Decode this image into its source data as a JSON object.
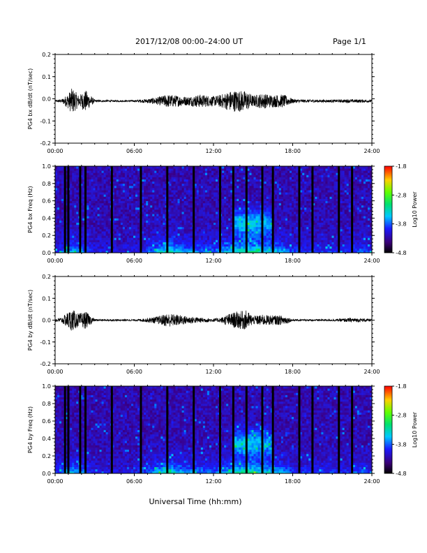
{
  "header": {
    "title": "2017/12/08  00:00–24:00 UT",
    "page": "Page 1/1"
  },
  "chart_data": [
    {
      "type": "line",
      "ylabel": "PG4 bx dB/dt (nT/sec)",
      "xlabel": "",
      "xlim": [
        "00:00",
        "24:00"
      ],
      "ylim": [
        -0.2,
        0.2
      ],
      "x_ticks": [
        "00:00",
        "06:00",
        "12:00",
        "18:00",
        "24:00"
      ],
      "y_ticks": [
        "-0.2",
        "-0.1",
        "0.0",
        "0.1",
        "0.2"
      ],
      "series": [
        {
          "x_hours": [
            0,
            0.5,
            1.0,
            1.3,
            1.8,
            2.3,
            3,
            4,
            5,
            6,
            6.5,
            7,
            7.8,
            8.5,
            9.3,
            10,
            11,
            12,
            12.5,
            13.2,
            13.8,
            14.5,
            15,
            15.7,
            16.5,
            17.3,
            18,
            18.5,
            19.5,
            21,
            22.5,
            24
          ],
          "envelope": [
            0.005,
            0.008,
            0.035,
            0.06,
            0.025,
            0.05,
            0.006,
            0.004,
            0.004,
            0.004,
            0.007,
            0.01,
            0.018,
            0.03,
            0.025,
            0.02,
            0.03,
            0.022,
            0.028,
            0.045,
            0.05,
            0.045,
            0.025,
            0.035,
            0.028,
            0.03,
            0.01,
            0.007,
            0.007,
            0.006,
            0.008,
            0.006
          ],
          "baseline": -0.01
        }
      ]
    },
    {
      "type": "heatmap",
      "ylabel": "PG4 bx Freq (Hz)",
      "xlim": [
        "00:00",
        "24:00"
      ],
      "ylim": [
        0.0,
        1.0
      ],
      "x_ticks": [
        "00:00",
        "06:00",
        "12:00",
        "18:00",
        "24:00"
      ],
      "y_ticks": [
        "0.0",
        "0.2",
        "0.4",
        "0.6",
        "0.8",
        "1.0"
      ],
      "colorbar": {
        "label": "Log10 Power",
        "range": [
          -4.8,
          -1.8
        ],
        "ticks": [
          "-1.8",
          "-2.8",
          "-3.8",
          "-4.8"
        ]
      },
      "gap_hours": [
        0.75,
        1.0,
        1.9,
        2.3,
        4.3,
        6.5,
        8.5,
        10.5,
        12.5,
        13.5,
        14.5,
        15.7,
        16.5,
        18.5,
        19.5,
        21.5,
        22.5
      ]
    },
    {
      "type": "line",
      "ylabel": "PG4 by dB/dt (nT/sec)",
      "xlim": [
        "00:00",
        "24:00"
      ],
      "ylim": [
        -0.2,
        0.2
      ],
      "x_ticks": [
        "00:00",
        "06:00",
        "12:00",
        "18:00",
        "24:00"
      ],
      "y_ticks": [
        "-0.2",
        "-0.1",
        "0.0",
        "0.1",
        "0.2"
      ],
      "series": [
        {
          "x_hours": [
            0,
            0.5,
            1.0,
            1.3,
            1.8,
            2.3,
            3,
            4,
            5,
            6,
            6.5,
            7,
            7.8,
            8.5,
            9.3,
            10,
            11,
            12,
            12.5,
            13.2,
            13.8,
            14.5,
            15,
            15.7,
            16.5,
            17.3,
            18,
            18.5,
            19.5,
            21,
            22.5,
            24
          ],
          "envelope": [
            0.008,
            0.012,
            0.04,
            0.05,
            0.03,
            0.04,
            0.005,
            0.004,
            0.004,
            0.004,
            0.006,
            0.01,
            0.018,
            0.032,
            0.025,
            0.018,
            0.012,
            0.008,
            0.01,
            0.03,
            0.04,
            0.045,
            0.02,
            0.025,
            0.022,
            0.022,
            0.005,
            0.004,
            0.004,
            0.005,
            0.01,
            0.006
          ],
          "baseline": 0.0
        }
      ]
    },
    {
      "type": "heatmap",
      "ylabel": "PG4 by Freq (Hz)",
      "xlim": [
        "00:00",
        "24:00"
      ],
      "ylim": [
        0.0,
        1.0
      ],
      "x_ticks": [
        "00:00",
        "06:00",
        "12:00",
        "18:00",
        "24:00"
      ],
      "y_ticks": [
        "0.0",
        "0.2",
        "0.4",
        "0.6",
        "0.8",
        "1.0"
      ],
      "colorbar": {
        "label": "Log10 Power",
        "range": [
          -4.8,
          -1.8
        ],
        "ticks": [
          "-1.8",
          "-2.8",
          "-3.8",
          "-4.8"
        ]
      },
      "gap_hours": [
        0.75,
        1.0,
        1.9,
        2.3,
        4.3,
        6.5,
        8.5,
        10.5,
        12.5,
        13.5,
        14.5,
        15.7,
        16.5,
        18.5,
        19.5,
        21.5,
        22.5
      ]
    }
  ],
  "xlabel": "Universal Time (hh:mm)"
}
